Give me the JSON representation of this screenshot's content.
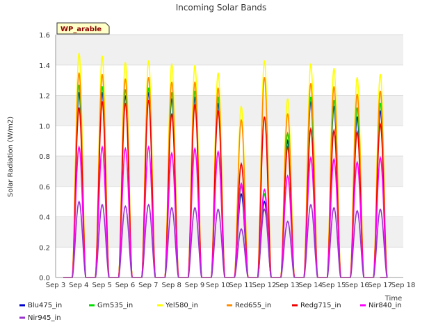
{
  "chart_data": {
    "type": "line",
    "title": "Incoming Solar Bands",
    "xlabel": "Time",
    "ylabel": "Solar Radiation (W/m2)",
    "ylim": [
      0,
      1.6
    ],
    "yticks": [
      "0.0",
      "0.2",
      "0.4",
      "0.6",
      "0.8",
      "1.0",
      "1.2",
      "1.4",
      "1.6"
    ],
    "xticks": [
      "Sep 3",
      "Sep 4",
      "Sep 5",
      "Sep 6",
      "Sep 7",
      "Sep 8",
      "Sep 9",
      "Sep 10",
      "Sep 11",
      "Sep 12",
      "Sep 13",
      "Sep 14",
      "Sep 15",
      "Sep 16",
      "Sep 17",
      "Sep 18"
    ],
    "xlim": [
      "Sep 3",
      "Sep 18"
    ],
    "grid": "horizontal bands",
    "site_label": "WP_arable",
    "legend_position": "bottom",
    "days": [
      "Sep 4",
      "Sep 5",
      "Sep 6",
      "Sep 7",
      "Sep 8",
      "Sep 9",
      "Sep 10",
      "Sep 11",
      "Sep 12",
      "Sep 13",
      "Sep 14",
      "Sep 15",
      "Sep 16",
      "Sep 17"
    ],
    "series": [
      {
        "name": "Blu475_in",
        "color": "#0000cc",
        "daily_peaks": [
          1.22,
          1.22,
          1.2,
          1.22,
          1.18,
          1.19,
          1.15,
          0.55,
          0.5,
          0.9,
          1.16,
          1.13,
          1.06,
          1.1
        ]
      },
      {
        "name": "Grn535_in",
        "color": "#00dd00",
        "daily_peaks": [
          1.27,
          1.26,
          1.24,
          1.25,
          1.22,
          1.23,
          1.19,
          0.6,
          0.55,
          0.95,
          1.19,
          1.17,
          1.12,
          1.15
        ]
      },
      {
        "name": "Yel580_in",
        "color": "#ffff00",
        "daily_peaks": [
          1.48,
          1.46,
          1.42,
          1.43,
          1.41,
          1.4,
          1.35,
          1.13,
          1.43,
          1.18,
          1.41,
          1.38,
          1.32,
          1.34
        ]
      },
      {
        "name": "Red655_in",
        "color": "#ff8c00",
        "daily_peaks": [
          1.35,
          1.34,
          1.31,
          1.32,
          1.29,
          1.29,
          1.25,
          1.04,
          1.32,
          1.08,
          1.28,
          1.26,
          1.21,
          1.23
        ]
      },
      {
        "name": "Redg715_in",
        "color": "#ee0000",
        "daily_peaks": [
          1.12,
          1.16,
          1.15,
          1.17,
          1.08,
          1.14,
          1.1,
          0.75,
          1.06,
          0.86,
          0.98,
          0.97,
          0.96,
          1.01
        ]
      },
      {
        "name": "Nir840_in",
        "color": "#ff00ff",
        "daily_peaks": [
          0.86,
          0.86,
          0.85,
          0.86,
          0.82,
          0.85,
          0.83,
          0.62,
          0.58,
          0.67,
          0.79,
          0.78,
          0.76,
          0.79
        ]
      },
      {
        "name": "Nir945_in",
        "color": "#9932cc",
        "daily_peaks": [
          0.5,
          0.48,
          0.47,
          0.48,
          0.46,
          0.46,
          0.45,
          0.32,
          0.45,
          0.37,
          0.48,
          0.46,
          0.44,
          0.45
        ]
      }
    ]
  }
}
